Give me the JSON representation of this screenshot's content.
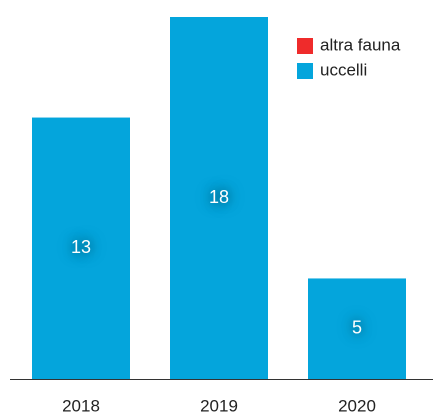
{
  "chart_data": {
    "type": "stacked_bar",
    "categories": [
      "2018",
      "2019",
      "2020"
    ],
    "series": [
      {
        "name": "altra fauna",
        "color": "#ef2b2b",
        "values": [
          0,
          0,
          0
        ]
      },
      {
        "name": "uccelli",
        "color": "#04a5dc",
        "values": [
          13,
          18,
          5
        ]
      }
    ],
    "ylim": [
      0,
      18
    ],
    "legend": "top-right"
  }
}
